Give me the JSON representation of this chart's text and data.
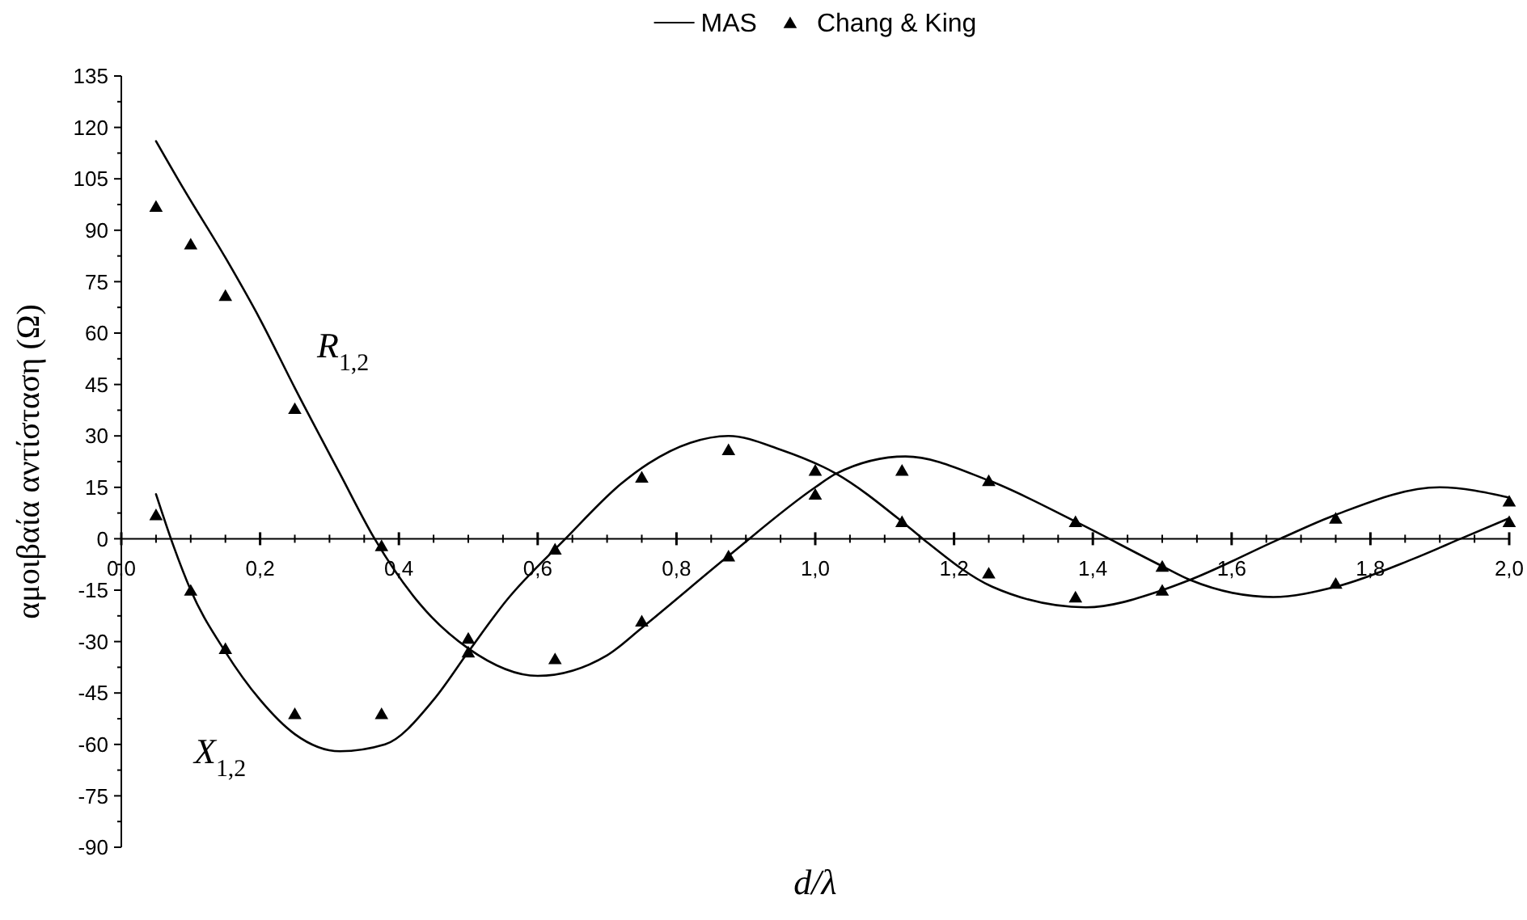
{
  "chart_data": {
    "type": "line",
    "xlabel": "d/λ",
    "ylabel": "αμοιβαία αντίσταση (Ω)",
    "legend": "top",
    "xlim": [
      0,
      2
    ],
    "ylim": [
      -90,
      135
    ],
    "xticks": [
      {
        "value": 0,
        "label": "0,0"
      },
      {
        "value": 0.05,
        "label": null
      },
      {
        "value": 0.1,
        "label": null
      },
      {
        "value": 0.15,
        "label": null
      },
      {
        "value": 0.2,
        "label": "0,2"
      },
      {
        "value": 0.25,
        "label": null
      },
      {
        "value": 0.3,
        "label": null
      },
      {
        "value": 0.35,
        "label": null
      },
      {
        "value": 0.4,
        "label": "0,4"
      },
      {
        "value": 0.45,
        "label": null
      },
      {
        "value": 0.5,
        "label": null
      },
      {
        "value": 0.55,
        "label": null
      },
      {
        "value": 0.6,
        "label": "0,6"
      },
      {
        "value": 0.65,
        "label": null
      },
      {
        "value": 0.7,
        "label": null
      },
      {
        "value": 0.75,
        "label": null
      },
      {
        "value": 0.8,
        "label": "0,8"
      },
      {
        "value": 0.85,
        "label": null
      },
      {
        "value": 0.9,
        "label": null
      },
      {
        "value": 0.95,
        "label": null
      },
      {
        "value": 1,
        "label": "1,0"
      },
      {
        "value": 1.05,
        "label": null
      },
      {
        "value": 1.1,
        "label": null
      },
      {
        "value": 1.15,
        "label": null
      },
      {
        "value": 1.2,
        "label": "1,2"
      },
      {
        "value": 1.25,
        "label": null
      },
      {
        "value": 1.3,
        "label": null
      },
      {
        "value": 1.35,
        "label": null
      },
      {
        "value": 1.4,
        "label": "1,4"
      },
      {
        "value": 1.45,
        "label": null
      },
      {
        "value": 1.5,
        "label": null
      },
      {
        "value": 1.55,
        "label": null
      },
      {
        "value": 1.6,
        "label": "1,6"
      },
      {
        "value": 1.65,
        "label": null
      },
      {
        "value": 1.7,
        "label": null
      },
      {
        "value": 1.75,
        "label": null
      },
      {
        "value": 1.8,
        "label": "1,8"
      },
      {
        "value": 1.85,
        "label": null
      },
      {
        "value": 1.9,
        "label": null
      },
      {
        "value": 1.95,
        "label": null
      },
      {
        "value": 2,
        "label": "2,0"
      }
    ],
    "yticks": [
      -90,
      {
        "value": -82.5,
        "label": null
      },
      -75,
      {
        "value": -67.5,
        "label": null
      },
      -60,
      {
        "value": -52.5,
        "label": null
      },
      -45,
      {
        "value": -37.5,
        "label": null
      },
      -30,
      {
        "value": -22.5,
        "label": null
      },
      -15,
      {
        "value": -7.5,
        "label": null
      },
      0,
      {
        "value": 7.5,
        "label": null
      },
      15,
      {
        "value": 22.5,
        "label": null
      },
      30,
      {
        "value": 37.5,
        "label": null
      },
      45,
      {
        "value": 52.5,
        "label": null
      },
      60,
      {
        "value": 67.5,
        "label": null
      },
      75,
      {
        "value": 82.5,
        "label": null
      },
      90,
      {
        "value": 97.5,
        "label": null
      },
      105,
      {
        "value": 112.5,
        "label": null
      },
      120,
      {
        "value": 127.5,
        "label": null
      },
      135
    ],
    "annotations": [
      "R$_{1,2}$",
      "X$_{1,2}$"
    ],
    "series": [
      {
        "name": "MAS",
        "color": "#000000",
        "x": [
          0.05,
          0.09,
          0.15,
          0.2,
          0.25,
          0.315,
          0.365,
          0.43,
          0.5,
          0.6,
          0.7,
          0.75,
          0.875,
          1.0,
          1.03,
          1.13,
          1.25,
          1.375,
          1.5,
          1.54,
          1.66,
          1.75,
          1.86,
          1.93,
          2.0
        ],
        "values": [
          116,
          102,
          82,
          64,
          44,
          19,
          0,
          -19,
          -32,
          -40,
          -34,
          -26,
          -5,
          15,
          19,
          24,
          17,
          5,
          -8,
          -12,
          -17,
          -14,
          -6,
          0,
          6
        ]
      },
      {
        "color": "#000000",
        "x": [
          0.05,
          0.075,
          0.1,
          0.15,
          0.2,
          0.25,
          0.315,
          0.38,
          0.45,
          0.5,
          0.555,
          0.64,
          0.72,
          0.76,
          0.82,
          0.875,
          0.95,
          1.03,
          1.125,
          1.155,
          1.255,
          1.39,
          1.5,
          1.54,
          1.67,
          1.75,
          1.9,
          2.0
        ],
        "values": [
          13,
          -2,
          -15,
          -33,
          -47,
          -57,
          -62,
          -60,
          -47,
          -33,
          -18,
          0,
          16,
          22,
          28,
          30,
          26,
          19,
          5,
          0,
          -14,
          -20,
          -15,
          -12,
          0,
          7,
          15,
          12
        ]
      },
      {
        "name": "Chang & King",
        "type": "scatter",
        "marker": "triangle",
        "color": "#000000",
        "x": [
          0.05,
          0.1,
          0.15,
          0.25,
          0.375,
          0.5,
          0.625,
          0.75,
          0.875,
          1.0,
          1.125,
          1.25,
          1.375,
          1.5,
          1.75,
          2.0
        ],
        "values": [
          97,
          86,
          71,
          38,
          -2,
          -33,
          -35,
          -24,
          -5,
          13,
          20,
          17,
          5,
          -8,
          -13,
          5
        ]
      },
      {
        "type": "scatter",
        "marker": "triangle",
        "color": "#000000",
        "x": [
          0.05,
          0.1,
          0.15,
          0.25,
          0.375,
          0.5,
          0.625,
          0.75,
          0.875,
          1.0,
          1.125,
          1.25,
          1.375,
          1.5,
          1.75,
          2.0
        ],
        "values": [
          7,
          -15,
          -32,
          -51,
          -51,
          -29,
          -3,
          18,
          26,
          20,
          5,
          -10,
          -17,
          -15,
          6,
          11
        ]
      }
    ]
  }
}
